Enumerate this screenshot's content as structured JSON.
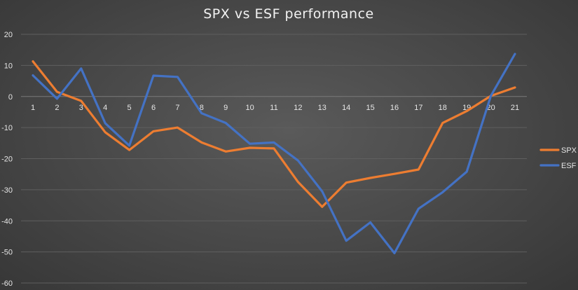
{
  "chart_data": {
    "type": "line",
    "title": "SPX vs ESF performance",
    "xlabel": "",
    "ylabel": "",
    "categories": [
      "1",
      "2",
      "3",
      "4",
      "5",
      "6",
      "7",
      "8",
      "9",
      "10",
      "11",
      "12",
      "13",
      "14",
      "15",
      "16",
      "17",
      "18",
      "19",
      "20",
      "21"
    ],
    "ylim": [
      -60,
      20
    ],
    "yticks": [
      20,
      10,
      0,
      -10,
      -20,
      -30,
      -40,
      -50,
      -60
    ],
    "grid": true,
    "legend_position": "right",
    "series": [
      {
        "name": "SPX",
        "color": "#ed7d31",
        "values": [
          11.3,
          1.5,
          -1.4,
          -11.5,
          -17.2,
          -11.2,
          -10.0,
          -14.8,
          -17.7,
          -16.5,
          -16.7,
          -27.5,
          -35.5,
          -27.7,
          -26.2,
          -24.9,
          -23.5,
          -8.5,
          -4.7,
          0.2,
          2.9
        ]
      },
      {
        "name": "ESF",
        "color": "#4472c4",
        "values": [
          6.8,
          -0.7,
          9.0,
          -8.6,
          -15.8,
          6.7,
          6.3,
          -5.4,
          -8.5,
          -15.2,
          -14.8,
          -20.6,
          -30.5,
          -46.4,
          -40.5,
          -50.4,
          -36.1,
          -30.8,
          -24.2,
          0.2,
          13.7
        ]
      }
    ]
  }
}
